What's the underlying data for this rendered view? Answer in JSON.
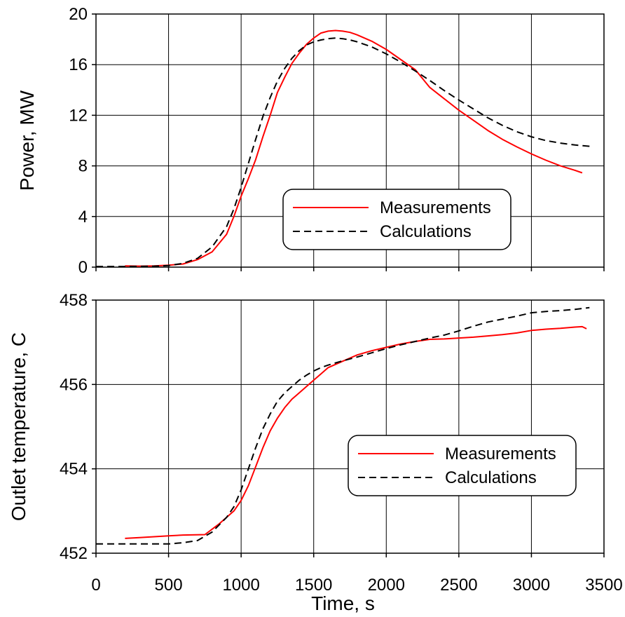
{
  "chart_data": [
    {
      "type": "line",
      "ylabel": "Power, MW",
      "xlim": [
        0,
        3500
      ],
      "ylim": [
        0,
        20
      ],
      "xticks": [
        0,
        500,
        1000,
        1500,
        2000,
        2500,
        3000,
        3500
      ],
      "yticks": [
        0,
        4,
        8,
        12,
        16,
        20
      ],
      "show_xtick_labels": false,
      "grid": true,
      "legend_position": "center-right",
      "series": [
        {
          "name": "Measurements",
          "color": "#ff0000",
          "dash": "solid",
          "points": [
            [
              200,
              0.1
            ],
            [
              300,
              0.08
            ],
            [
              400,
              0.1
            ],
            [
              500,
              0.15
            ],
            [
              600,
              0.25
            ],
            [
              700,
              0.6
            ],
            [
              800,
              1.2
            ],
            [
              900,
              2.6
            ],
            [
              950,
              4.0
            ],
            [
              1000,
              5.6
            ],
            [
              1050,
              7.0
            ],
            [
              1100,
              8.5
            ],
            [
              1150,
              10.3
            ],
            [
              1200,
              12.0
            ],
            [
              1250,
              13.8
            ],
            [
              1300,
              15.0
            ],
            [
              1350,
              16.1
            ],
            [
              1400,
              16.9
            ],
            [
              1450,
              17.6
            ],
            [
              1500,
              18.1
            ],
            [
              1550,
              18.5
            ],
            [
              1600,
              18.65
            ],
            [
              1650,
              18.7
            ],
            [
              1700,
              18.65
            ],
            [
              1750,
              18.55
            ],
            [
              1800,
              18.35
            ],
            [
              1900,
              17.85
            ],
            [
              2000,
              17.2
            ],
            [
              2100,
              16.4
            ],
            [
              2200,
              15.6
            ],
            [
              2300,
              14.2
            ],
            [
              2400,
              13.3
            ],
            [
              2500,
              12.4
            ],
            [
              2600,
              11.6
            ],
            [
              2700,
              10.8
            ],
            [
              2800,
              10.1
            ],
            [
              2900,
              9.5
            ],
            [
              3000,
              8.95
            ],
            [
              3100,
              8.45
            ],
            [
              3200,
              8.0
            ],
            [
              3300,
              7.65
            ],
            [
              3350,
              7.45
            ]
          ]
        },
        {
          "name": "Calculations",
          "color": "#000000",
          "dash": "dashed",
          "points": [
            [
              0,
              0.05
            ],
            [
              200,
              0.05
            ],
            [
              400,
              0.08
            ],
            [
              500,
              0.12
            ],
            [
              600,
              0.3
            ],
            [
              700,
              0.7
            ],
            [
              800,
              1.6
            ],
            [
              900,
              3.2
            ],
            [
              950,
              4.6
            ],
            [
              1000,
              6.3
            ],
            [
              1050,
              8.2
            ],
            [
              1100,
              10.1
            ],
            [
              1150,
              11.9
            ],
            [
              1200,
              13.4
            ],
            [
              1250,
              14.7
            ],
            [
              1300,
              15.7
            ],
            [
              1350,
              16.5
            ],
            [
              1400,
              17.1
            ],
            [
              1450,
              17.55
            ],
            [
              1500,
              17.8
            ],
            [
              1550,
              17.95
            ],
            [
              1600,
              18.05
            ],
            [
              1650,
              18.1
            ],
            [
              1700,
              18.05
            ],
            [
              1750,
              17.95
            ],
            [
              1800,
              17.8
            ],
            [
              1900,
              17.4
            ],
            [
              2000,
              16.85
            ],
            [
              2100,
              16.2
            ],
            [
              2200,
              15.5
            ],
            [
              2300,
              14.75
            ],
            [
              2400,
              13.95
            ],
            [
              2500,
              13.2
            ],
            [
              2600,
              12.5
            ],
            [
              2700,
              11.8
            ],
            [
              2800,
              11.2
            ],
            [
              2900,
              10.7
            ],
            [
              3000,
              10.3
            ],
            [
              3100,
              10.0
            ],
            [
              3200,
              9.8
            ],
            [
              3300,
              9.65
            ],
            [
              3400,
              9.55
            ]
          ]
        }
      ]
    },
    {
      "type": "line",
      "xlabel": "Time, s",
      "ylabel": "Outlet temperature, C",
      "xlim": [
        0,
        3500
      ],
      "ylim": [
        452,
        458
      ],
      "xticks": [
        0,
        500,
        1000,
        1500,
        2000,
        2500,
        3000,
        3500
      ],
      "yticks": [
        452,
        454,
        456,
        458
      ],
      "show_xtick_labels": true,
      "grid": true,
      "legend_position": "center-right",
      "series": [
        {
          "name": "Measurements",
          "color": "#ff0000",
          "dash": "solid",
          "points": [
            [
              200,
              452.35
            ],
            [
              300,
              452.37
            ],
            [
              400,
              452.39
            ],
            [
              500,
              452.41
            ],
            [
              600,
              452.43
            ],
            [
              750,
              452.44
            ],
            [
              850,
              452.7
            ],
            [
              950,
              453.0
            ],
            [
              1000,
              453.25
            ],
            [
              1050,
              453.6
            ],
            [
              1100,
              454.05
            ],
            [
              1150,
              454.5
            ],
            [
              1200,
              454.9
            ],
            [
              1250,
              455.2
            ],
            [
              1300,
              455.45
            ],
            [
              1350,
              455.65
            ],
            [
              1400,
              455.8
            ],
            [
              1450,
              455.95
            ],
            [
              1500,
              456.1
            ],
            [
              1550,
              456.25
            ],
            [
              1600,
              456.4
            ],
            [
              1700,
              456.55
            ],
            [
              1800,
              456.7
            ],
            [
              1900,
              456.8
            ],
            [
              2000,
              456.88
            ],
            [
              2100,
              456.96
            ],
            [
              2200,
              457.02
            ],
            [
              2300,
              457.07
            ],
            [
              2400,
              457.08
            ],
            [
              2500,
              457.1
            ],
            [
              2600,
              457.12
            ],
            [
              2700,
              457.15
            ],
            [
              2800,
              457.18
            ],
            [
              2900,
              457.22
            ],
            [
              3000,
              457.28
            ],
            [
              3100,
              457.31
            ],
            [
              3200,
              457.33
            ],
            [
              3300,
              457.36
            ],
            [
              3350,
              457.37
            ],
            [
              3380,
              457.32
            ]
          ]
        },
        {
          "name": "Calculations",
          "color": "#000000",
          "dash": "dashed",
          "points": [
            [
              0,
              452.22
            ],
            [
              200,
              452.22
            ],
            [
              400,
              452.22
            ],
            [
              500,
              452.22
            ],
            [
              600,
              452.25
            ],
            [
              700,
              452.3
            ],
            [
              800,
              452.5
            ],
            [
              900,
              452.85
            ],
            [
              950,
              453.1
            ],
            [
              1000,
              453.5
            ],
            [
              1050,
              454.0
            ],
            [
              1100,
              454.5
            ],
            [
              1150,
              454.95
            ],
            [
              1200,
              455.3
            ],
            [
              1250,
              455.6
            ],
            [
              1300,
              455.8
            ],
            [
              1350,
              455.95
            ],
            [
              1400,
              456.1
            ],
            [
              1450,
              456.22
            ],
            [
              1500,
              456.32
            ],
            [
              1550,
              456.4
            ],
            [
              1600,
              456.46
            ],
            [
              1700,
              456.56
            ],
            [
              1800,
              456.65
            ],
            [
              1900,
              456.75
            ],
            [
              2000,
              456.85
            ],
            [
              2100,
              456.94
            ],
            [
              2200,
              457.02
            ],
            [
              2300,
              457.1
            ],
            [
              2400,
              457.17
            ],
            [
              2500,
              457.27
            ],
            [
              2600,
              457.38
            ],
            [
              2700,
              457.48
            ],
            [
              2800,
              457.55
            ],
            [
              2900,
              457.62
            ],
            [
              3000,
              457.7
            ],
            [
              3100,
              457.73
            ],
            [
              3200,
              457.75
            ],
            [
              3300,
              457.78
            ],
            [
              3400,
              457.82
            ]
          ]
        }
      ]
    }
  ]
}
